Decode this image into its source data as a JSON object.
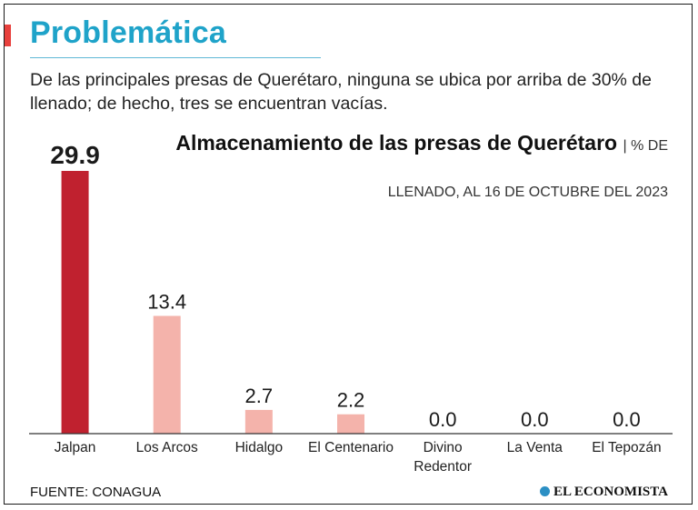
{
  "header": {
    "title": "Problemática",
    "subtitle": "De las principales presas de Querétaro, ninguna se ubica por arriba de 30% de llenado; de hecho, tres se encuentran vacías."
  },
  "chart_data": {
    "type": "bar",
    "title": "Almacenamiento de las presas de Querétaro",
    "unit_label": "| % DE",
    "subtitle": "LLENADO, AL 16 DE OCTUBRE DEL 2023",
    "categories": [
      [
        "Jalpan"
      ],
      [
        "Los Arcos"
      ],
      [
        "Hidalgo"
      ],
      [
        "El Centenario"
      ],
      [
        "Divino",
        "Redentor"
      ],
      [
        "La Venta"
      ],
      [
        "El Tepozán"
      ]
    ],
    "values": [
      29.9,
      13.4,
      2.7,
      2.2,
      0.0,
      0.0,
      0.0
    ],
    "value_labels": [
      "29.9",
      "13.4",
      "2.7",
      "2.2",
      "0.0",
      "0.0",
      "0.0"
    ],
    "highlight_index": 0,
    "ylim": [
      0,
      29.9
    ],
    "colors": {
      "highlight": "#c0212f",
      "bar": "#f4b3ab",
      "axis": "#333333",
      "title": "#1fa3c9",
      "accent": "#e8413d"
    }
  },
  "footer": {
    "source": "FUENTE: CONAGUA",
    "brand": "EL ECONOMISTA",
    "brand_icon": "el-economista-logo-icon"
  }
}
